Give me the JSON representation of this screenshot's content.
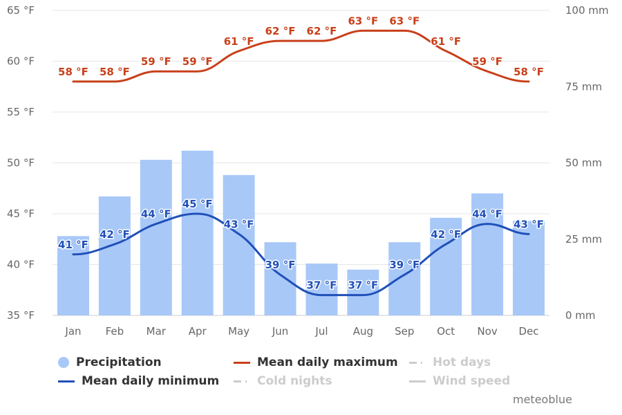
{
  "chart_data": {
    "type": "bar+line",
    "categories": [
      "Jan",
      "Feb",
      "Mar",
      "Apr",
      "May",
      "Jun",
      "Jul",
      "Aug",
      "Sep",
      "Oct",
      "Nov",
      "Dec"
    ],
    "left_axis": {
      "min": 35,
      "max": 65,
      "ticks": [
        35,
        40,
        45,
        50,
        55,
        60,
        65
      ],
      "tick_labels": [
        "35 °F",
        "40 °F",
        "45 °F",
        "50 °F",
        "55 °F",
        "60 °F",
        "65 °F"
      ]
    },
    "right_axis": {
      "min": 0,
      "max": 100,
      "ticks": [
        0,
        25,
        50,
        75,
        100
      ],
      "tick_labels": [
        "0 mm",
        "25 mm",
        "50 mm",
        "75 mm",
        "100 mm"
      ]
    },
    "grid": true,
    "series": [
      {
        "name": "Precipitation",
        "kind": "bar",
        "axis": "right",
        "color": "#a8c8f8",
        "values": [
          26,
          39,
          51,
          54,
          46,
          24,
          17,
          15,
          24,
          32,
          40,
          31
        ]
      },
      {
        "name": "Mean daily maximum",
        "kind": "line",
        "axis": "left",
        "color": "#c8401a",
        "values": [
          58,
          58,
          59,
          59,
          61,
          62,
          62,
          63,
          63,
          61,
          59,
          58
        ],
        "labels": [
          "58 °F",
          "58 °F",
          "59 °F",
          "59 °F",
          "61 °F",
          "62 °F",
          "62 °F",
          "63 °F",
          "63 °F",
          "61 °F",
          "59 °F",
          "58 °F"
        ]
      },
      {
        "name": "Mean daily minimum",
        "kind": "line",
        "axis": "left",
        "color": "#2050b8",
        "values": [
          41,
          42,
          44,
          45,
          43,
          39,
          37,
          37,
          39,
          42,
          44,
          43
        ],
        "labels": [
          "41 °F",
          "42 °F",
          "44 °F",
          "45 °F",
          "43 °F",
          "39 °F",
          "37 °F",
          "37 °F",
          "39 °F",
          "42 °F",
          "44 °F",
          "43 °F"
        ]
      }
    ]
  },
  "legend": {
    "precipitation": "Precipitation",
    "mean_max": "Mean daily maximum",
    "hot_days": "Hot days",
    "mean_min": "Mean daily minimum",
    "cold_nights": "Cold nights",
    "wind_speed": "Wind speed"
  },
  "credit": "meteoblue"
}
